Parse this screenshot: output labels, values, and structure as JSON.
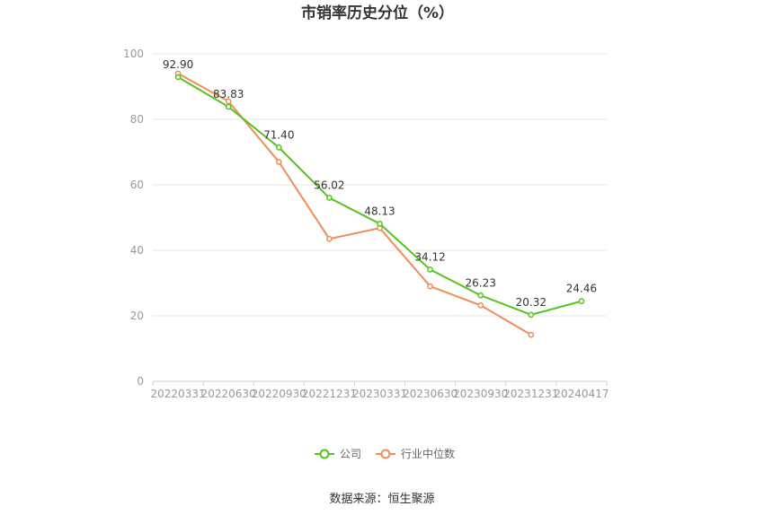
{
  "chart_data": {
    "type": "line",
    "title": "市销率历史分位（%）",
    "categories": [
      "20220331",
      "20220630",
      "20220930",
      "20221231",
      "20230331",
      "20230630",
      "20230930",
      "20231231",
      "20240417"
    ],
    "ylim": [
      0,
      100
    ],
    "yticks": [
      0,
      20,
      40,
      60,
      80,
      100
    ],
    "grid": true,
    "legend_position": "bottom-center",
    "series": [
      {
        "name": "公司",
        "color": "#52c41a",
        "values": [
          92.9,
          83.83,
          71.4,
          56.02,
          48.13,
          34.12,
          26.23,
          20.32,
          24.46
        ],
        "labels": [
          "92.90",
          "83.83",
          "71.40",
          "56.02",
          "48.13",
          "34.12",
          "26.23",
          "20.32",
          "24.46"
        ]
      },
      {
        "name": "行业中位数",
        "color": "#f08c5a",
        "values": [
          94.0,
          85.5,
          67.0,
          43.5,
          46.8,
          29.0,
          23.2,
          14.2,
          null
        ]
      }
    ]
  },
  "source_text": "数据来源：恒生聚源"
}
